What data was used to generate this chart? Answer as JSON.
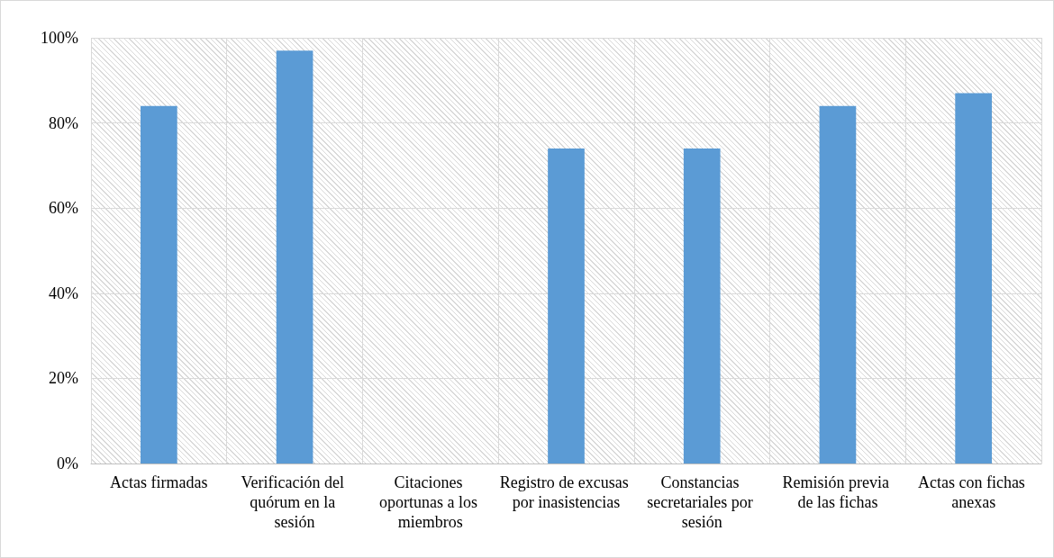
{
  "chart_data": {
    "type": "bar",
    "categories": [
      "Actas firmadas",
      "Verificación del quórum en la sesión",
      "Citaciones oportunas a los miembros",
      "Registro de excusas por inasistencias",
      "Constancias secretariales por sesión",
      "Remisión previa de las fichas",
      "Actas con fichas anexas"
    ],
    "values": [
      84,
      97,
      0,
      74,
      74,
      84,
      87
    ],
    "color": "#5b9bd5",
    "ylim": [
      0,
      100
    ],
    "yticks": [
      {
        "value": 0,
        "label": "0%"
      },
      {
        "value": 20,
        "label": "20%"
      },
      {
        "value": 40,
        "label": "40%"
      },
      {
        "value": 60,
        "label": "60%"
      },
      {
        "value": 80,
        "label": "80%"
      },
      {
        "value": 100,
        "label": "100%"
      }
    ],
    "grid": true
  }
}
